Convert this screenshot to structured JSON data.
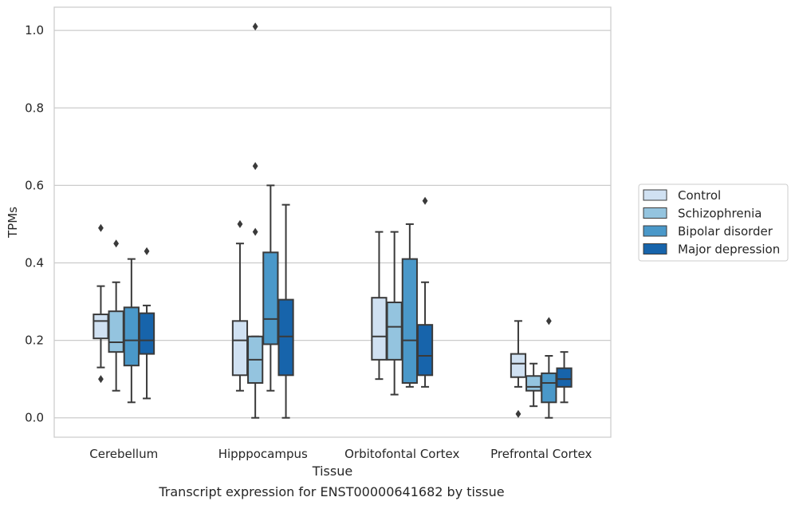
{
  "chart_data": {
    "type": "box",
    "title": "",
    "caption": "Transcript expression for ENST00000641682 by tissue",
    "xlabel": "Tissue",
    "ylabel": "TPMs",
    "ylim": [
      -0.05,
      1.06
    ],
    "yticks": [
      0.0,
      0.2,
      0.4,
      0.6,
      0.8,
      1.0
    ],
    "ytick_labels": [
      "0.0",
      "0.2",
      "0.4",
      "0.6",
      "0.8",
      "1.0"
    ],
    "grid": "horizontal",
    "legend_position": "right",
    "categories": [
      "Cerebellum",
      "Hipppocampus",
      "Orbitofontal Cortex",
      "Prefrontal Cortex"
    ],
    "series": [
      {
        "name": "Control",
        "color": "#d0e1f2",
        "boxes": [
          {
            "whislo": 0.13,
            "q1": 0.205,
            "med": 0.25,
            "q3": 0.267,
            "whishi": 0.34,
            "fliers": [
              0.49,
              0.1
            ]
          },
          {
            "whislo": 0.07,
            "q1": 0.11,
            "med": 0.2,
            "q3": 0.25,
            "whishi": 0.45,
            "fliers": [
              0.5
            ]
          },
          {
            "whislo": 0.1,
            "q1": 0.15,
            "med": 0.21,
            "q3": 0.31,
            "whishi": 0.48,
            "fliers": []
          },
          {
            "whislo": 0.08,
            "q1": 0.105,
            "med": 0.14,
            "q3": 0.165,
            "whishi": 0.25,
            "fliers": [
              0.01
            ]
          }
        ]
      },
      {
        "name": "Schizophrenia",
        "color": "#94c4df",
        "boxes": [
          {
            "whislo": 0.07,
            "q1": 0.17,
            "med": 0.195,
            "q3": 0.275,
            "whishi": 0.35,
            "fliers": [
              0.45
            ]
          },
          {
            "whislo": 0.0,
            "q1": 0.09,
            "med": 0.15,
            "q3": 0.21,
            "whishi": 0.21,
            "fliers": [
              0.65,
              0.48,
              1.01
            ]
          },
          {
            "whislo": 0.06,
            "q1": 0.15,
            "med": 0.235,
            "q3": 0.298,
            "whishi": 0.48,
            "fliers": []
          },
          {
            "whislo": 0.03,
            "q1": 0.07,
            "med": 0.08,
            "q3": 0.108,
            "whishi": 0.14,
            "fliers": []
          }
        ]
      },
      {
        "name": "Bipolar disorder",
        "color": "#4a98c9",
        "boxes": [
          {
            "whislo": 0.04,
            "q1": 0.135,
            "med": 0.2,
            "q3": 0.285,
            "whishi": 0.41,
            "fliers": []
          },
          {
            "whislo": 0.07,
            "q1": 0.19,
            "med": 0.255,
            "q3": 0.427,
            "whishi": 0.6,
            "fliers": []
          },
          {
            "whislo": 0.08,
            "q1": 0.09,
            "med": 0.2,
            "q3": 0.41,
            "whishi": 0.5,
            "fliers": []
          },
          {
            "whislo": 0.0,
            "q1": 0.04,
            "med": 0.09,
            "q3": 0.115,
            "whishi": 0.16,
            "fliers": [
              0.25
            ]
          }
        ]
      },
      {
        "name": "Major depression",
        "color": "#1764ab",
        "boxes": [
          {
            "whislo": 0.05,
            "q1": 0.165,
            "med": 0.2,
            "q3": 0.27,
            "whishi": 0.29,
            "fliers": [
              0.43
            ]
          },
          {
            "whislo": 0.0,
            "q1": 0.11,
            "med": 0.21,
            "q3": 0.305,
            "whishi": 0.55,
            "fliers": []
          },
          {
            "whislo": 0.08,
            "q1": 0.11,
            "med": 0.16,
            "q3": 0.24,
            "whishi": 0.35,
            "fliers": [
              0.56
            ]
          },
          {
            "whislo": 0.04,
            "q1": 0.08,
            "med": 0.1,
            "q3": 0.128,
            "whishi": 0.17,
            "fliers": []
          }
        ]
      }
    ]
  }
}
